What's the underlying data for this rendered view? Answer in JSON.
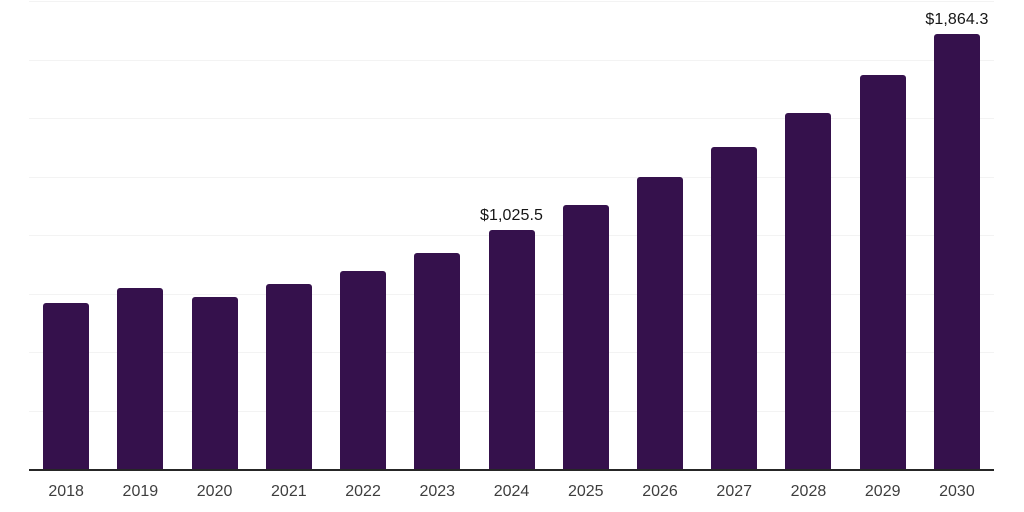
{
  "chart_data": {
    "type": "bar",
    "title": "",
    "xlabel": "",
    "ylabel": "",
    "categories": [
      "2018",
      "2019",
      "2020",
      "2021",
      "2022",
      "2023",
      "2024",
      "2025",
      "2026",
      "2027",
      "2028",
      "2029",
      "2030"
    ],
    "values": [
      715,
      779,
      740,
      793,
      849,
      927,
      1025.5,
      1134,
      1252,
      1381,
      1524,
      1688,
      1864.3
    ],
    "annotations": [
      "",
      "",
      "",
      "",
      "",
      "",
      "$1,025.5",
      "",
      "",
      "",
      "",
      "",
      "$1,864.3"
    ],
    "ylim": [
      0,
      2000
    ],
    "ytick_step": 250,
    "grid": "horizontal",
    "legend": "none",
    "colors": {
      "bar": "#35114C",
      "axis_line": "#262626",
      "gridline": "#f3f3f3",
      "annotation_text": "#161616",
      "tick_label": "#3e3e3e",
      "background": "#ffffff"
    }
  }
}
